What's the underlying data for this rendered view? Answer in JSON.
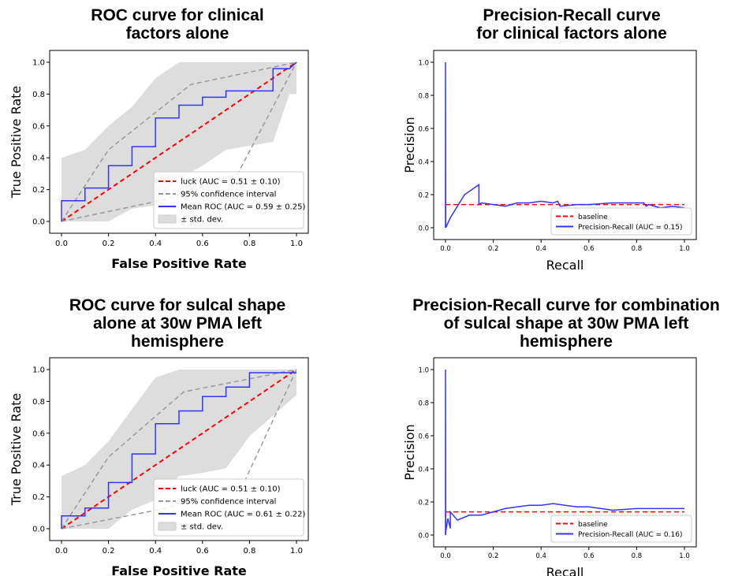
{
  "chart_data": [
    {
      "type": "line",
      "kind": "roc",
      "title": "ROC curve for clinical\nfactors alone",
      "xlabel": "False Positive Rate",
      "ylabel": "True Positive Rate",
      "xlim": [
        0,
        1
      ],
      "ylim": [
        0,
        1
      ],
      "xticks": [
        "0.0",
        "0.2",
        "0.4",
        "0.6",
        "0.8",
        "1.0"
      ],
      "yticks": [
        "0.0",
        "0.2",
        "0.4",
        "0.6",
        "0.8",
        "1.0"
      ],
      "legend_position": "lower-right",
      "colors": {
        "luck": "#ff0000",
        "ci": "#999999",
        "mean": "#3333ff",
        "std": "#dddddd"
      },
      "series": [
        {
          "name": "luck (AUC = 0.51 ± 0.10)",
          "style": "dashed",
          "x": [
            0,
            1
          ],
          "y": [
            0,
            1
          ]
        },
        {
          "name": "95% confidence interval",
          "style": "dashed",
          "x": [
            0,
            0.2,
            0.55,
            1.0
          ],
          "y": [
            0,
            0.45,
            0.86,
            1.0
          ],
          "x2": [
            0,
            0.45,
            0.75,
            1.0
          ],
          "y2": [
            0,
            0.14,
            0.3,
            1.0
          ]
        },
        {
          "name": "Mean ROC (AUC = 0.59 ± 0.25)",
          "style": "solid",
          "x": [
            0,
            0,
            0.1,
            0.1,
            0.2,
            0.2,
            0.3,
            0.3,
            0.4,
            0.4,
            0.5,
            0.5,
            0.6,
            0.6,
            0.7,
            0.7,
            0.9,
            0.9,
            0.97,
            1.0
          ],
          "y": [
            0,
            0.13,
            0.13,
            0.21,
            0.21,
            0.35,
            0.35,
            0.47,
            0.47,
            0.65,
            0.65,
            0.73,
            0.73,
            0.78,
            0.78,
            0.82,
            0.82,
            0.96,
            0.96,
            1.0
          ]
        },
        {
          "name": "± std. dev.",
          "style": "band",
          "x": [
            0,
            0.1,
            0.2,
            0.3,
            0.4,
            0.5,
            0.6,
            0.7,
            0.9,
            0.97,
            1.0
          ],
          "upper": [
            0.4,
            0.45,
            0.6,
            0.72,
            0.9,
            1.0,
            1.0,
            1.0,
            1.0,
            1.0,
            1.0
          ],
          "lower": [
            0,
            0,
            0,
            0.08,
            0.1,
            0.27,
            0.35,
            0.45,
            0.5,
            0.8,
            0.8
          ]
        }
      ]
    },
    {
      "type": "line",
      "kind": "pr",
      "title": "Precision-Recall curve\nfor clinical factors alone",
      "xlabel": "Recall",
      "ylabel": "Precision",
      "xlim": [
        0,
        1
      ],
      "ylim": [
        0,
        1
      ],
      "xticks": [
        "0.0",
        "0.2",
        "0.4",
        "0.6",
        "0.8",
        "1.0"
      ],
      "yticks": [
        "0.0",
        "0.2",
        "0.4",
        "0.6",
        "0.8",
        "1.0"
      ],
      "legend_position": "lower-right",
      "colors": {
        "baseline": "#ff0000",
        "pr": "#3333ff"
      },
      "series": [
        {
          "name": "baseline",
          "style": "dashed",
          "x": [
            0,
            1
          ],
          "y": [
            0.14,
            0.14
          ]
        },
        {
          "name": "Precision-Recall (AUC = 0.15)",
          "style": "solid",
          "x": [
            0,
            0,
            0.001,
            0.001,
            0.02,
            0.08,
            0.14,
            0.14,
            0.15,
            0.2,
            0.25,
            0.3,
            0.35,
            0.4,
            0.45,
            0.47,
            0.48,
            0.55,
            0.6,
            0.7,
            0.75,
            0.8,
            0.83,
            0.84,
            0.85,
            0.9,
            0.95,
            1.0
          ],
          "y": [
            0.0,
            1.0,
            0.0,
            0.0,
            0.06,
            0.2,
            0.26,
            0.14,
            0.15,
            0.14,
            0.13,
            0.15,
            0.15,
            0.16,
            0.15,
            0.16,
            0.13,
            0.14,
            0.14,
            0.15,
            0.15,
            0.15,
            0.15,
            0.13,
            0.14,
            0.12,
            0.13,
            0.12
          ]
        }
      ]
    },
    {
      "type": "line",
      "kind": "roc",
      "title": "ROC curve for sulcal shape\nalone at 30w PMA left\nhemisphere",
      "xlabel": "False Positive Rate",
      "ylabel": "True Positive Rate",
      "xlim": [
        0,
        1
      ],
      "ylim": [
        0,
        1
      ],
      "xticks": [
        "0.0",
        "0.2",
        "0.4",
        "0.6",
        "0.8",
        "1.0"
      ],
      "yticks": [
        "0.0",
        "0.2",
        "0.4",
        "0.6",
        "0.8",
        "1.0"
      ],
      "legend_position": "lower-right",
      "colors": {
        "luck": "#ff0000",
        "ci": "#999999",
        "mean": "#3333ff",
        "std": "#dddddd"
      },
      "series": [
        {
          "name": "luck (AUC = 0.51 ± 0.10)",
          "style": "dashed",
          "x": [
            0,
            1
          ],
          "y": [
            0,
            1
          ]
        },
        {
          "name": "95% confidence interval",
          "style": "dashed",
          "x": [
            0,
            0.2,
            0.52,
            1.0
          ],
          "y": [
            0,
            0.45,
            0.86,
            1.0
          ],
          "x2": [
            0,
            0.45,
            0.78,
            1.0
          ],
          "y2": [
            0,
            0.13,
            0.3,
            1.0
          ]
        },
        {
          "name": "Mean ROC (AUC = 0.61 ± 0.22)",
          "style": "solid",
          "x": [
            0,
            0,
            0.1,
            0.1,
            0.2,
            0.2,
            0.3,
            0.3,
            0.4,
            0.4,
            0.5,
            0.5,
            0.6,
            0.6,
            0.7,
            0.7,
            0.8,
            0.8,
            1.0
          ],
          "y": [
            0,
            0.08,
            0.08,
            0.13,
            0.13,
            0.29,
            0.29,
            0.47,
            0.47,
            0.66,
            0.66,
            0.74,
            0.74,
            0.83,
            0.83,
            0.89,
            0.89,
            0.98,
            0.98
          ]
        },
        {
          "name": "± std. dev.",
          "style": "band",
          "x": [
            0,
            0.1,
            0.2,
            0.3,
            0.4,
            0.5,
            0.6,
            0.7,
            0.8,
            1.0
          ],
          "upper": [
            0.33,
            0.4,
            0.55,
            0.75,
            0.95,
            1.0,
            1.0,
            1.0,
            1.0,
            1.0
          ],
          "lower": [
            0,
            0,
            0,
            0.12,
            0.18,
            0.33,
            0.35,
            0.38,
            0.58,
            0.84
          ]
        }
      ]
    },
    {
      "type": "line",
      "kind": "pr",
      "title": "Precision-Recall curve for combination\nof sulcal shape at 30w PMA left\nhemisphere",
      "xlabel": "Recall",
      "ylabel": "Precision",
      "xlim": [
        0,
        1
      ],
      "ylim": [
        0,
        1
      ],
      "xticks": [
        "0.0",
        "0.2",
        "0.4",
        "0.6",
        "0.8",
        "1.0"
      ],
      "yticks": [
        "0.0",
        "0.2",
        "0.4",
        "0.6",
        "0.8",
        "1.0"
      ],
      "legend_position": "lower-right",
      "colors": {
        "baseline": "#ff0000",
        "pr": "#3333ff"
      },
      "series": [
        {
          "name": "baseline",
          "style": "dashed",
          "x": [
            0,
            1
          ],
          "y": [
            0.14,
            0.14
          ]
        },
        {
          "name": "Precision-Recall (AUC = 0.16)",
          "style": "solid",
          "x": [
            0,
            0,
            0.001,
            0.001,
            0.01,
            0.02,
            0.02,
            0.05,
            0.1,
            0.15,
            0.2,
            0.25,
            0.3,
            0.35,
            0.4,
            0.45,
            0.5,
            0.55,
            0.6,
            0.65,
            0.7,
            0.8,
            0.9,
            1.0
          ],
          "y": [
            0.0,
            1.0,
            0.0,
            0.02,
            0.1,
            0.04,
            0.14,
            0.09,
            0.12,
            0.12,
            0.14,
            0.16,
            0.17,
            0.18,
            0.18,
            0.19,
            0.18,
            0.17,
            0.17,
            0.16,
            0.15,
            0.16,
            0.16,
            0.16
          ]
        }
      ]
    }
  ]
}
